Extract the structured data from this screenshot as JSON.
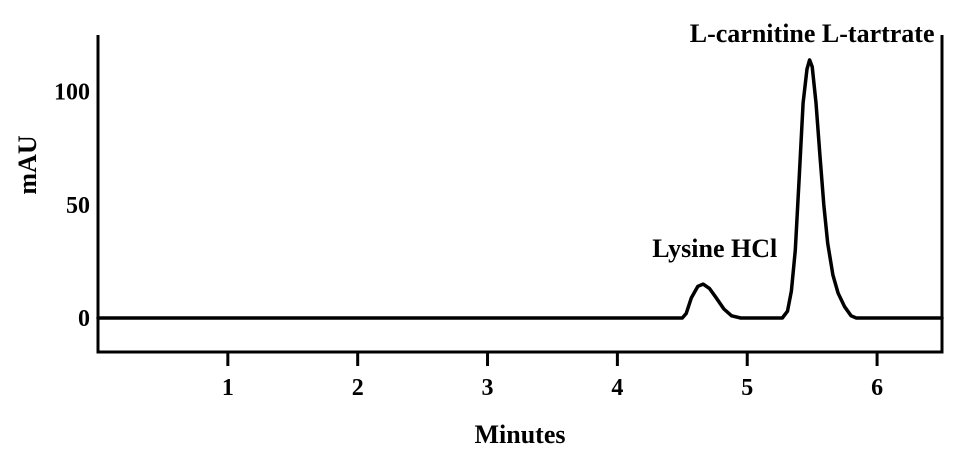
{
  "chart_data": {
    "type": "line",
    "title": "",
    "xlabel": "Minutes",
    "ylabel": "mAU",
    "xlim": [
      0,
      6.5
    ],
    "ylim": [
      -15,
      125
    ],
    "x_ticks": [
      1,
      2,
      3,
      4,
      5,
      6
    ],
    "y_ticks": [
      0,
      50,
      100
    ],
    "grid": false,
    "series": [
      {
        "color": "#000000",
        "points": [
          [
            0.0,
            0
          ],
          [
            4.5,
            0
          ],
          [
            4.53,
            2
          ],
          [
            4.57,
            9
          ],
          [
            4.62,
            14
          ],
          [
            4.66,
            15
          ],
          [
            4.71,
            13
          ],
          [
            4.76,
            9
          ],
          [
            4.82,
            4
          ],
          [
            4.88,
            1
          ],
          [
            4.95,
            0
          ],
          [
            5.27,
            0
          ],
          [
            5.31,
            3
          ],
          [
            5.34,
            12
          ],
          [
            5.37,
            30
          ],
          [
            5.4,
            62
          ],
          [
            5.43,
            95
          ],
          [
            5.46,
            110
          ],
          [
            5.48,
            114
          ],
          [
            5.5,
            111
          ],
          [
            5.53,
            95
          ],
          [
            5.56,
            72
          ],
          [
            5.59,
            50
          ],
          [
            5.62,
            33
          ],
          [
            5.66,
            19
          ],
          [
            5.7,
            11
          ],
          [
            5.75,
            5
          ],
          [
            5.8,
            1
          ],
          [
            5.84,
            0
          ],
          [
            6.5,
            0
          ]
        ]
      }
    ],
    "annotations": [
      {
        "text": "Lysine HCl",
        "x": 4.75,
        "y": 27
      },
      {
        "text": "L-carnitine L-tartrate",
        "x": 5.5,
        "y": 122
      }
    ]
  }
}
